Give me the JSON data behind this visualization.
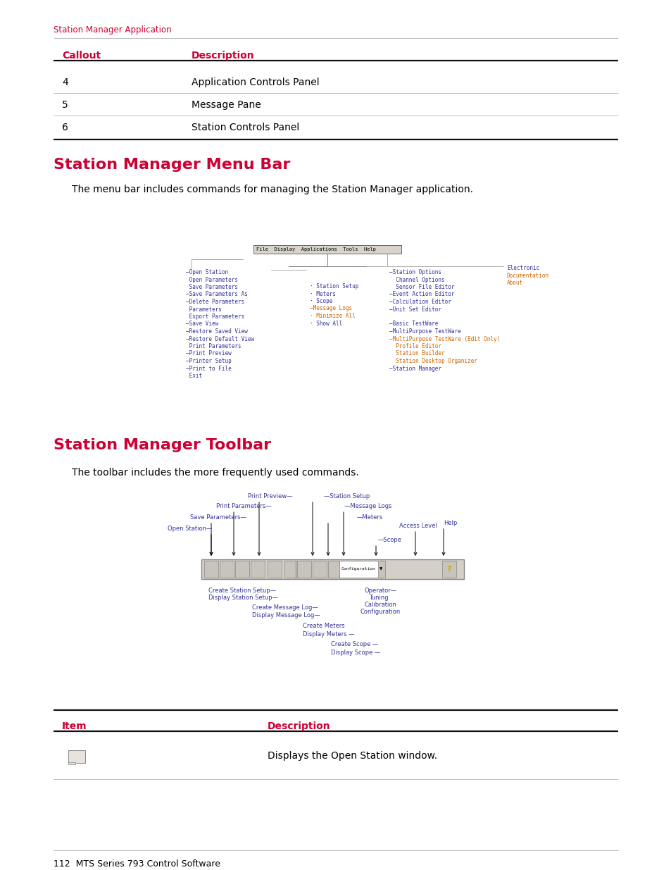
{
  "page_bg": "#ffffff",
  "red_color": "#cc0033",
  "black_color": "#000000",
  "header_text": "Station Manager Application",
  "t1_h1": "Callout",
  "t1_h2": "Description",
  "t1_rows": [
    [
      "4",
      "Application Controls Panel"
    ],
    [
      "5",
      "Message Pane"
    ],
    [
      "6",
      "Station Controls Panel"
    ]
  ],
  "s1_title": "Station Manager Menu Bar",
  "s1_desc": "The menu bar includes commands for managing the Station Manager application.",
  "s2_title": "Station Manager Toolbar",
  "s2_desc": "The toolbar includes the more frequently used commands.",
  "t2_h1": "Item",
  "t2_h2": "Description",
  "t2_desc": "Displays the Open Station window.",
  "footer": "112  MTS Series 793 Control Software",
  "file_items": [
    [
      true,
      "Open Station"
    ],
    [
      false,
      "Open Parameters"
    ],
    [
      false,
      "Save Parameters"
    ],
    [
      true,
      "Save Parameters As"
    ],
    [
      true,
      "Delete Parameters"
    ],
    [
      false,
      "Parameters"
    ],
    [
      false,
      "Export Parameters"
    ],
    [
      true,
      "Save View"
    ],
    [
      true,
      "Restore Saved View"
    ],
    [
      true,
      "Restore Default View"
    ],
    [
      false,
      "Print Parameters"
    ],
    [
      true,
      "Print Preview"
    ],
    [
      true,
      "Printer Setup"
    ],
    [
      true,
      "Print to File"
    ],
    [
      false,
      "Exit"
    ]
  ],
  "disp_items": [
    [
      false,
      "·",
      "Station Setup"
    ],
    [
      false,
      "·",
      "Meters"
    ],
    [
      false,
      "·",
      "Scope"
    ],
    [
      true,
      "",
      "Message Logs"
    ],
    [
      false,
      "·",
      "Minimize All"
    ],
    [
      false,
      "·",
      "Show All"
    ]
  ],
  "app_items": [
    [
      true,
      "Station Options"
    ],
    [
      false,
      "Channel Options"
    ],
    [
      false,
      "Sensor File Editor"
    ],
    [
      true,
      "Event Action Editor"
    ],
    [
      true,
      "Calculation Editor"
    ],
    [
      true,
      "Unit Set Editor"
    ],
    [
      null,
      ""
    ],
    [
      true,
      "Basic TestWare"
    ],
    [
      true,
      "MultiPurpose TestWare"
    ],
    [
      true,
      "MultiPurpose TestWare (Edit Only)"
    ],
    [
      false,
      "Profile Editor"
    ],
    [
      false,
      "Station Builder"
    ],
    [
      false,
      "Station Desktop Organizer"
    ],
    [
      true,
      "Station Manager"
    ]
  ],
  "help_items": [
    "Electronic",
    "Documentation",
    "About"
  ],
  "menu_text_color": "#333399",
  "menu_orange_color": "#cc6600"
}
